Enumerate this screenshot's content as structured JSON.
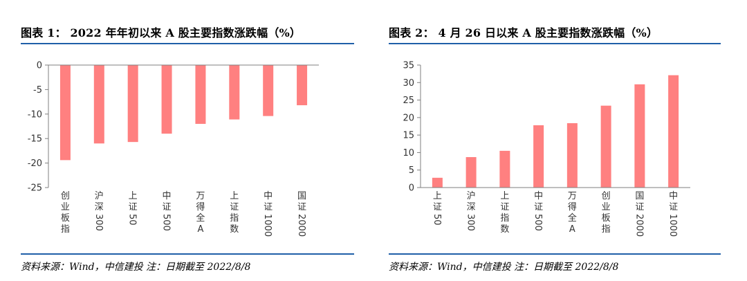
{
  "chart_data": [
    {
      "type": "bar",
      "title": "图表 1： 2022 年年初以来 A 股主要指数涨跌幅（%）",
      "categories": [
        "创业板指",
        "沪深300",
        "上证50",
        "中证500",
        "万得全A",
        "上证指数",
        "中证1000",
        "国证2000"
      ],
      "values": [
        -19.4,
        -16.0,
        -15.7,
        -14.0,
        -12.0,
        -11.1,
        -10.4,
        -8.2
      ],
      "ylim": [
        -25,
        0
      ],
      "yticks": [
        0,
        -5,
        -10,
        -15,
        -20,
        -25
      ],
      "xlabel": "",
      "ylabel": "",
      "grid": false,
      "bar_color": "#ff8080",
      "source": "资料来源：Wind，中信建投 注：日期截至 2022/8/8"
    },
    {
      "type": "bar",
      "title": "图表 2： 4 月 26 日以来 A 股主要指数涨跌幅（%）",
      "categories": [
        "上证50",
        "沪深300",
        "上证指数",
        "中证500",
        "万得全A",
        "创业板指",
        "国证2000",
        "中证1000"
      ],
      "values": [
        2.8,
        8.7,
        10.5,
        17.8,
        18.4,
        23.4,
        29.5,
        32.1
      ],
      "ylim": [
        0,
        35
      ],
      "yticks": [
        0,
        5,
        10,
        15,
        20,
        25,
        30,
        35
      ],
      "xlabel": "",
      "ylabel": "",
      "grid": false,
      "bar_color": "#ff8080",
      "source": "资料来源：Wind，中信建投 注：日期截至 2022/8/8"
    }
  ],
  "colors": {
    "accent_rule": "#1f5fa8",
    "bar": "#ff8080",
    "axis": "#7f7f7f"
  }
}
